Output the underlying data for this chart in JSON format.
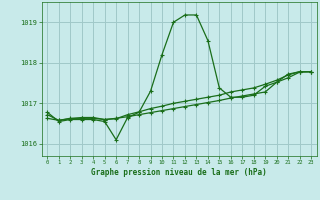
{
  "background_color": "#c8eaea",
  "grid_color": "#a0c8c8",
  "line_color": "#1a6e1a",
  "title": "Graphe pression niveau de la mer (hPa)",
  "xlim": [
    -0.5,
    23.5
  ],
  "ylim": [
    1015.7,
    1019.5
  ],
  "yticks": [
    1016,
    1017,
    1018,
    1019
  ],
  "xticks": [
    0,
    1,
    2,
    3,
    4,
    5,
    6,
    7,
    8,
    9,
    10,
    11,
    12,
    13,
    14,
    15,
    16,
    17,
    18,
    19,
    20,
    21,
    22,
    23
  ],
  "series1_x": [
    0,
    1,
    2,
    3,
    4,
    5,
    6,
    7,
    8,
    9,
    10,
    11,
    12,
    13,
    14,
    15,
    16,
    17,
    18,
    19,
    20,
    21,
    22,
    23
  ],
  "series1_y": [
    1016.78,
    1016.55,
    1016.6,
    1016.6,
    1016.6,
    1016.55,
    1016.1,
    1016.65,
    1016.78,
    1017.3,
    1018.2,
    1019.0,
    1019.18,
    1019.18,
    1018.55,
    1017.38,
    1017.15,
    1017.15,
    1017.2,
    1017.42,
    1017.52,
    1017.72,
    1017.78,
    1017.78
  ],
  "series2_x": [
    0,
    1,
    2,
    3,
    4,
    5,
    6,
    7,
    8,
    9,
    10,
    11,
    12,
    13,
    14,
    15,
    16,
    17,
    18,
    19,
    20,
    21,
    22,
    23
  ],
  "series2_y": [
    1016.63,
    1016.58,
    1016.63,
    1016.63,
    1016.63,
    1016.6,
    1016.63,
    1016.67,
    1016.72,
    1016.77,
    1016.82,
    1016.87,
    1016.92,
    1016.97,
    1017.02,
    1017.07,
    1017.13,
    1017.18,
    1017.23,
    1017.28,
    1017.52,
    1017.63,
    1017.77,
    1017.78
  ],
  "series3_x": [
    0,
    1,
    2,
    3,
    4,
    5,
    6,
    7,
    8,
    9,
    10,
    11,
    12,
    13,
    14,
    15,
    16,
    17,
    18,
    19,
    20,
    21,
    22,
    23
  ],
  "series3_y": [
    1016.72,
    1016.58,
    1016.62,
    1016.65,
    1016.65,
    1016.6,
    1016.62,
    1016.72,
    1016.79,
    1016.87,
    1016.93,
    1017.0,
    1017.05,
    1017.1,
    1017.15,
    1017.2,
    1017.28,
    1017.33,
    1017.38,
    1017.47,
    1017.57,
    1017.7,
    1017.78,
    1017.78
  ]
}
